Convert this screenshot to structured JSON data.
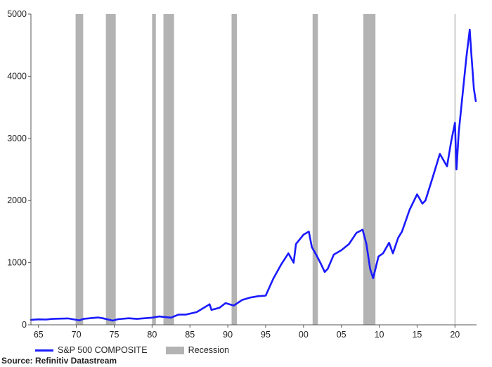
{
  "chart_data": {
    "type": "line",
    "title": "",
    "xlabel": "",
    "ylabel": "",
    "xlim": [
      1964.0,
      2022.85
    ],
    "ylim": [
      0,
      5000
    ],
    "x_ticks": [
      1965,
      1970,
      1975,
      1980,
      1985,
      1990,
      1995,
      2000,
      2005,
      2010,
      2015,
      2020
    ],
    "x_tick_labels": [
      "65",
      "70",
      "75",
      "80",
      "85",
      "90",
      "95",
      "00",
      "05",
      "10",
      "15",
      "20"
    ],
    "y_ticks": [
      0,
      1000,
      2000,
      3000,
      4000,
      5000
    ],
    "y_tick_labels": [
      "0",
      "1000",
      "2000",
      "3000",
      "4000",
      "5000"
    ],
    "grid": false,
    "colors": {
      "line": "#1a1aff",
      "recession": "#b3b3b3",
      "axis": "#555555",
      "marker": "#999999"
    },
    "vertical_marker_x": 2020.0,
    "recessions": [
      [
        1969.9,
        1970.9
      ],
      [
        1973.9,
        1975.2
      ],
      [
        1980.0,
        1980.5
      ],
      [
        1981.5,
        1982.9
      ],
      [
        1990.5,
        1991.2
      ],
      [
        2001.2,
        2001.9
      ],
      [
        2007.9,
        2009.5
      ]
    ],
    "series": [
      {
        "name": "S&P 500 COMPOSITE",
        "x": [
          1964.0,
          1965.0,
          1966.0,
          1966.8,
          1968.0,
          1968.9,
          1970.4,
          1971.0,
          1972.9,
          1973.5,
          1974.8,
          1975.5,
          1976.9,
          1978.0,
          1979.0,
          1980.0,
          1980.9,
          1982.5,
          1983.5,
          1984.5,
          1985.9,
          1987.6,
          1987.85,
          1988.9,
          1989.7,
          1990.8,
          1991.9,
          1993.0,
          1994.0,
          1995.0,
          1996.0,
          1997.0,
          1998.0,
          1998.7,
          1999.0,
          2000.0,
          2000.7,
          2001.1,
          2001.8,
          2002.3,
          2002.8,
          2003.2,
          2004.0,
          2005.0,
          2006.0,
          2007.0,
          2007.8,
          2008.3,
          2008.8,
          2009.2,
          2009.9,
          2010.5,
          2011.3,
          2011.8,
          2012.5,
          2013.0,
          2014.0,
          2015.0,
          2015.7,
          2016.1,
          2017.0,
          2018.0,
          2018.95,
          2019.5,
          2020.0,
          2020.2,
          2020.5,
          2021.0,
          2021.5,
          2021.95,
          2022.2,
          2022.5,
          2022.75
        ],
        "values": [
          80,
          88,
          85,
          95,
          100,
          103,
          72,
          97,
          118,
          105,
          68,
          90,
          105,
          95,
          105,
          115,
          135,
          115,
          165,
          165,
          205,
          330,
          240,
          275,
          350,
          310,
          400,
          440,
          460,
          470,
          740,
          960,
          1150,
          1000,
          1300,
          1450,
          1500,
          1250,
          1100,
          980,
          850,
          900,
          1130,
          1200,
          1300,
          1480,
          1530,
          1300,
          900,
          750,
          1100,
          1150,
          1320,
          1150,
          1400,
          1500,
          1850,
          2100,
          1950,
          2000,
          2350,
          2750,
          2550,
          2950,
          3250,
          2500,
          3100,
          3700,
          4300,
          4750,
          4300,
          3800,
          3600
        ]
      }
    ],
    "legend": [
      {
        "label": "S&P 500 COMPOSITE",
        "kind": "line"
      },
      {
        "label": "Recession",
        "kind": "box"
      }
    ],
    "legend_position": "bottom-left",
    "source": "Source: Refinitiv Datastream"
  }
}
